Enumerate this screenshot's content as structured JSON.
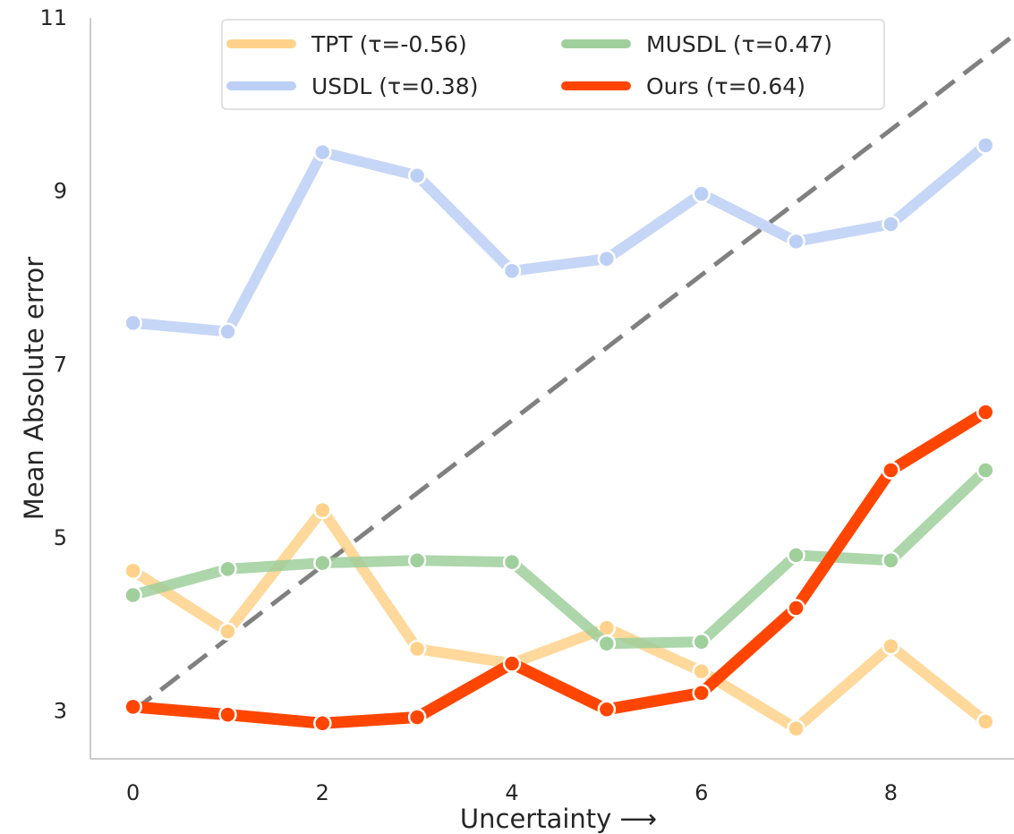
{
  "chart_data": {
    "type": "line",
    "title": "",
    "xlabel": "Uncertainty ⟶",
    "ylabel": "Mean Absolute error",
    "xlim": [
      -0.45,
      9.3
    ],
    "ylim": [
      2.45,
      11
    ],
    "xticks": [
      "0",
      "2",
      "4",
      "6",
      "8"
    ],
    "yticks": [
      "3",
      "5",
      "7",
      "9",
      "11"
    ],
    "grid": false,
    "legend_position": "top",
    "x": [
      0,
      1,
      2,
      3,
      4,
      5,
      6,
      7,
      8,
      9
    ],
    "series": [
      {
        "name": "TPT (τ=-0.56)",
        "color": "#FFD18A",
        "values": [
          4.62,
          3.92,
          5.32,
          3.72,
          3.55,
          3.96,
          3.46,
          2.8,
          3.75,
          2.88
        ]
      },
      {
        "name": "USDL (τ=0.38)",
        "color": "#BCCFF5",
        "values": [
          7.48,
          7.38,
          9.45,
          9.18,
          8.08,
          8.22,
          8.97,
          8.42,
          8.62,
          9.53
        ]
      },
      {
        "name": "MUSDL (τ=0.47)",
        "color": "#9FCF9B",
        "values": [
          4.34,
          4.64,
          4.71,
          4.74,
          4.72,
          3.78,
          3.8,
          4.8,
          4.74,
          5.78
        ]
      },
      {
        "name": "Ours (τ=0.64)",
        "color": "#FF4500",
        "values": [
          3.05,
          2.96,
          2.86,
          2.93,
          3.55,
          3.02,
          3.21,
          4.19,
          5.78,
          6.45
        ]
      }
    ],
    "reference_line": {
      "x": [
        0,
        9.3
      ],
      "y": [
        3.0,
        10.8
      ],
      "color": "#808080",
      "style": "dashed"
    }
  }
}
